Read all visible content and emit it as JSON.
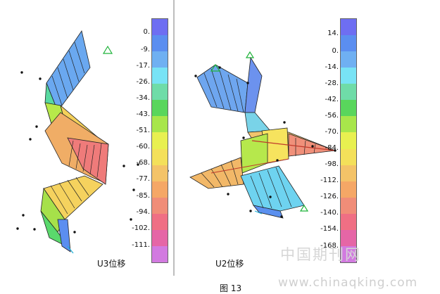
{
  "left_panel": {
    "label": "U3位移",
    "legend_ticks": [
      "0.",
      "-9.",
      "-17.",
      "-26.",
      "-34.",
      "-43.",
      "-51.",
      "-60.",
      "-68.",
      "-77.",
      "-85.",
      "-94.",
      "-102.",
      "-111."
    ]
  },
  "right_panel": {
    "label": "U2位移",
    "legend_ticks": [
      "14.",
      "0.",
      "-14.",
      "-28.",
      "-42.",
      "-56.",
      "-70.",
      "-84.",
      "-98.",
      "-112.",
      "-126.",
      "-140.",
      "-154.",
      "-168."
    ]
  },
  "legend_colors": [
    "#6e6ef2",
    "#5b8ef0",
    "#6fb0f2",
    "#78e3f5",
    "#6fdca8",
    "#59d65c",
    "#a8e64b",
    "#e8f050",
    "#f4e05a",
    "#f4c368",
    "#f5a766",
    "#f08d78",
    "#ef6f84",
    "#e566a6",
    "#d27ae0"
  ],
  "caption": "图 13",
  "watermark": {
    "cn": "中国期刊网",
    "url": "www.chinaqking.com"
  }
}
